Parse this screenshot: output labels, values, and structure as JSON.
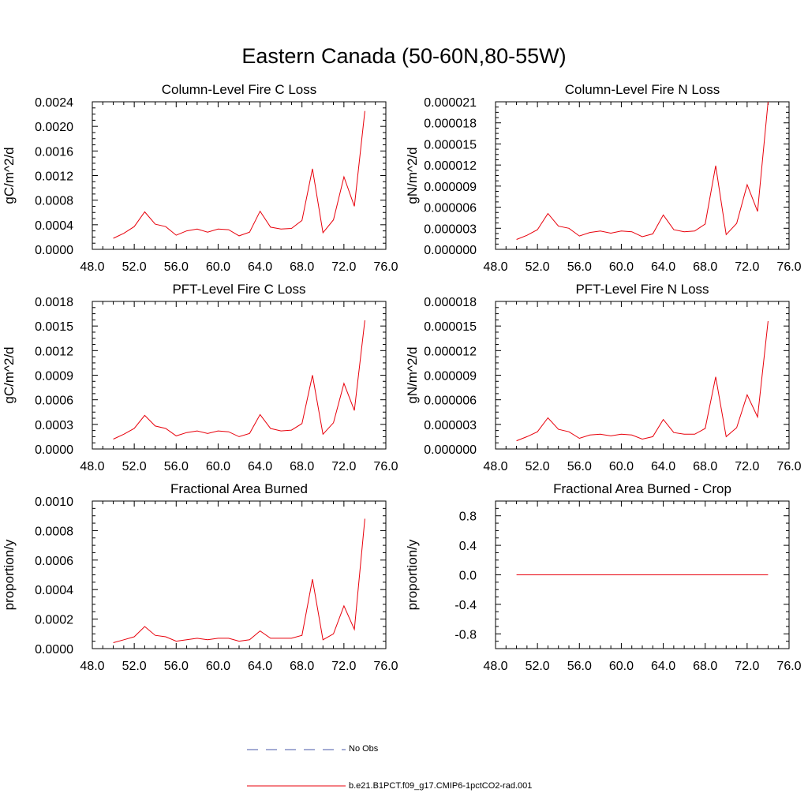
{
  "figure_title": "Eastern Canada (50-60N,80-55W)",
  "legend": [
    {
      "label": "No Obs",
      "color": "#4a5aa8",
      "style": "dashed"
    },
    {
      "label": "b.e21.B1PCT.f09_g17.CMIP6-1pctCO2-rad.001",
      "color": "#e8000b",
      "style": "solid"
    }
  ],
  "colors": {
    "series": "#e8000b",
    "axis": "#000000"
  },
  "chart_data": [
    {
      "type": "line",
      "title": "Column-Level Fire C Loss",
      "ylabel": "gC/m^2/d",
      "xlim": [
        48,
        76
      ],
      "ylim": [
        0,
        0.0024
      ],
      "xticks": [
        "48.0",
        "52.0",
        "56.0",
        "60.0",
        "64.0",
        "68.0",
        "72.0",
        "76.0"
      ],
      "yticks": [
        "0.0000",
        "0.0004",
        "0.0008",
        "0.0012",
        "0.0016",
        "0.0020",
        "0.0024"
      ],
      "x": [
        50,
        51,
        52,
        53,
        54,
        55,
        56,
        57,
        58,
        59,
        60,
        61,
        62,
        63,
        64,
        65,
        66,
        67,
        68,
        69,
        70,
        71,
        72,
        73,
        74
      ],
      "series": [
        {
          "values": [
            0.00018,
            0.00026,
            0.00037,
            0.00061,
            0.00041,
            0.00037,
            0.00023,
            0.0003,
            0.00033,
            0.00028,
            0.00033,
            0.00032,
            0.00022,
            0.00028,
            0.00062,
            0.00036,
            0.00033,
            0.00034,
            0.00047,
            0.00131,
            0.00027,
            0.00048,
            0.00118,
            0.0007,
            0.00225
          ]
        }
      ]
    },
    {
      "type": "line",
      "title": "Column-Level Fire N Loss",
      "ylabel": "gN/m^2/d",
      "xlim": [
        48,
        76
      ],
      "ylim": [
        0,
        2.1e-05
      ],
      "xticks": [
        "48.0",
        "52.0",
        "56.0",
        "60.0",
        "64.0",
        "68.0",
        "72.0",
        "76.0"
      ],
      "yticks": [
        "0.000000",
        "0.000003",
        "0.000006",
        "0.000009",
        "0.000012",
        "0.000015",
        "0.000018",
        "0.000021"
      ],
      "x": [
        50,
        51,
        52,
        53,
        54,
        55,
        56,
        57,
        58,
        59,
        60,
        61,
        62,
        63,
        64,
        65,
        66,
        67,
        68,
        69,
        70,
        71,
        72,
        73,
        74
      ],
      "series": [
        {
          "values": [
            1.4e-06,
            2e-06,
            2.8e-06,
            5.1e-06,
            3.3e-06,
            3e-06,
            1.9e-06,
            2.4e-06,
            2.6e-06,
            2.3e-06,
            2.6e-06,
            2.5e-06,
            1.8e-06,
            2.2e-06,
            4.9e-06,
            2.8e-06,
            2.5e-06,
            2.6e-06,
            3.6e-06,
            1.19e-05,
            2.1e-06,
            3.7e-06,
            9.2e-06,
            5.4e-06,
            2.1e-05
          ]
        }
      ]
    },
    {
      "type": "line",
      "title": "PFT-Level Fire C Loss",
      "ylabel": "gC/m^2/d",
      "xlim": [
        48,
        76
      ],
      "ylim": [
        0,
        0.0018
      ],
      "xticks": [
        "48.0",
        "52.0",
        "56.0",
        "60.0",
        "64.0",
        "68.0",
        "72.0",
        "76.0"
      ],
      "yticks": [
        "0.0000",
        "0.0003",
        "0.0006",
        "0.0009",
        "0.0012",
        "0.0015",
        "0.0018"
      ],
      "x": [
        50,
        51,
        52,
        53,
        54,
        55,
        56,
        57,
        58,
        59,
        60,
        61,
        62,
        63,
        64,
        65,
        66,
        67,
        68,
        69,
        70,
        71,
        72,
        73,
        74
      ],
      "series": [
        {
          "values": [
            0.00012,
            0.00018,
            0.00025,
            0.00041,
            0.00028,
            0.00025,
            0.00016,
            0.0002,
            0.00022,
            0.00019,
            0.00022,
            0.00021,
            0.00015,
            0.00019,
            0.00042,
            0.00025,
            0.00022,
            0.00023,
            0.00031,
            0.0009,
            0.00018,
            0.00032,
            0.0008,
            0.00047,
            0.00157
          ]
        }
      ]
    },
    {
      "type": "line",
      "title": "PFT-Level Fire N Loss",
      "ylabel": "gN/m^2/d",
      "xlim": [
        48,
        76
      ],
      "ylim": [
        0,
        1.8e-05
      ],
      "xticks": [
        "48.0",
        "52.0",
        "56.0",
        "60.0",
        "64.0",
        "68.0",
        "72.0",
        "76.0"
      ],
      "yticks": [
        "0.000000",
        "0.000003",
        "0.000006",
        "0.000009",
        "0.000012",
        "0.000015",
        "0.000018"
      ],
      "x": [
        50,
        51,
        52,
        53,
        54,
        55,
        56,
        57,
        58,
        59,
        60,
        61,
        62,
        63,
        64,
        65,
        66,
        67,
        68,
        69,
        70,
        71,
        72,
        73,
        74
      ],
      "series": [
        {
          "values": [
            1e-06,
            1.5e-06,
            2.1e-06,
            3.8e-06,
            2.4e-06,
            2.1e-06,
            1.3e-06,
            1.7e-06,
            1.8e-06,
            1.6e-06,
            1.8e-06,
            1.7e-06,
            1.2e-06,
            1.5e-06,
            3.6e-06,
            2e-06,
            1.8e-06,
            1.8e-06,
            2.5e-06,
            8.8e-06,
            1.5e-06,
            2.6e-06,
            6.6e-06,
            3.9e-06,
            1.56e-05
          ]
        }
      ]
    },
    {
      "type": "line",
      "title": "Fractional Area Burned",
      "ylabel": "proportion/y",
      "xlim": [
        48,
        76
      ],
      "ylim": [
        0,
        0.001
      ],
      "xticks": [
        "48.0",
        "52.0",
        "56.0",
        "60.0",
        "64.0",
        "68.0",
        "72.0",
        "76.0"
      ],
      "yticks": [
        "0.0000",
        "0.0002",
        "0.0004",
        "0.0006",
        "0.0008",
        "0.0010"
      ],
      "x": [
        50,
        51,
        52,
        53,
        54,
        55,
        56,
        57,
        58,
        59,
        60,
        61,
        62,
        63,
        64,
        65,
        66,
        67,
        68,
        69,
        70,
        71,
        72,
        73,
        74
      ],
      "series": [
        {
          "values": [
            4e-05,
            6e-05,
            8e-05,
            0.00015,
            9e-05,
            8e-05,
            5e-05,
            6e-05,
            7e-05,
            6e-05,
            7e-05,
            7e-05,
            5e-05,
            6e-05,
            0.00012,
            7e-05,
            7e-05,
            7e-05,
            9e-05,
            0.00047,
            6e-05,
            0.0001,
            0.00029,
            0.00013,
            0.00088
          ]
        }
      ]
    },
    {
      "type": "line",
      "title": "Fractional Area Burned - Crop",
      "ylabel": "proportion/y",
      "xlim": [
        48,
        76
      ],
      "ylim": [
        -1,
        1
      ],
      "xticks": [
        "48.0",
        "52.0",
        "56.0",
        "60.0",
        "64.0",
        "68.0",
        "72.0",
        "76.0"
      ],
      "yticks": [
        "-0.8",
        "-0.4",
        "0.0",
        "0.4",
        "0.8"
      ],
      "x": [
        50,
        51,
        52,
        53,
        54,
        55,
        56,
        57,
        58,
        59,
        60,
        61,
        62,
        63,
        64,
        65,
        66,
        67,
        68,
        69,
        70,
        71,
        72,
        73,
        74
      ],
      "series": [
        {
          "values": [
            0,
            0,
            0,
            0,
            0,
            0,
            0,
            0,
            0,
            0,
            0,
            0,
            0,
            0,
            0,
            0,
            0,
            0,
            0,
            0,
            0,
            0,
            0,
            0,
            0
          ]
        }
      ]
    }
  ]
}
